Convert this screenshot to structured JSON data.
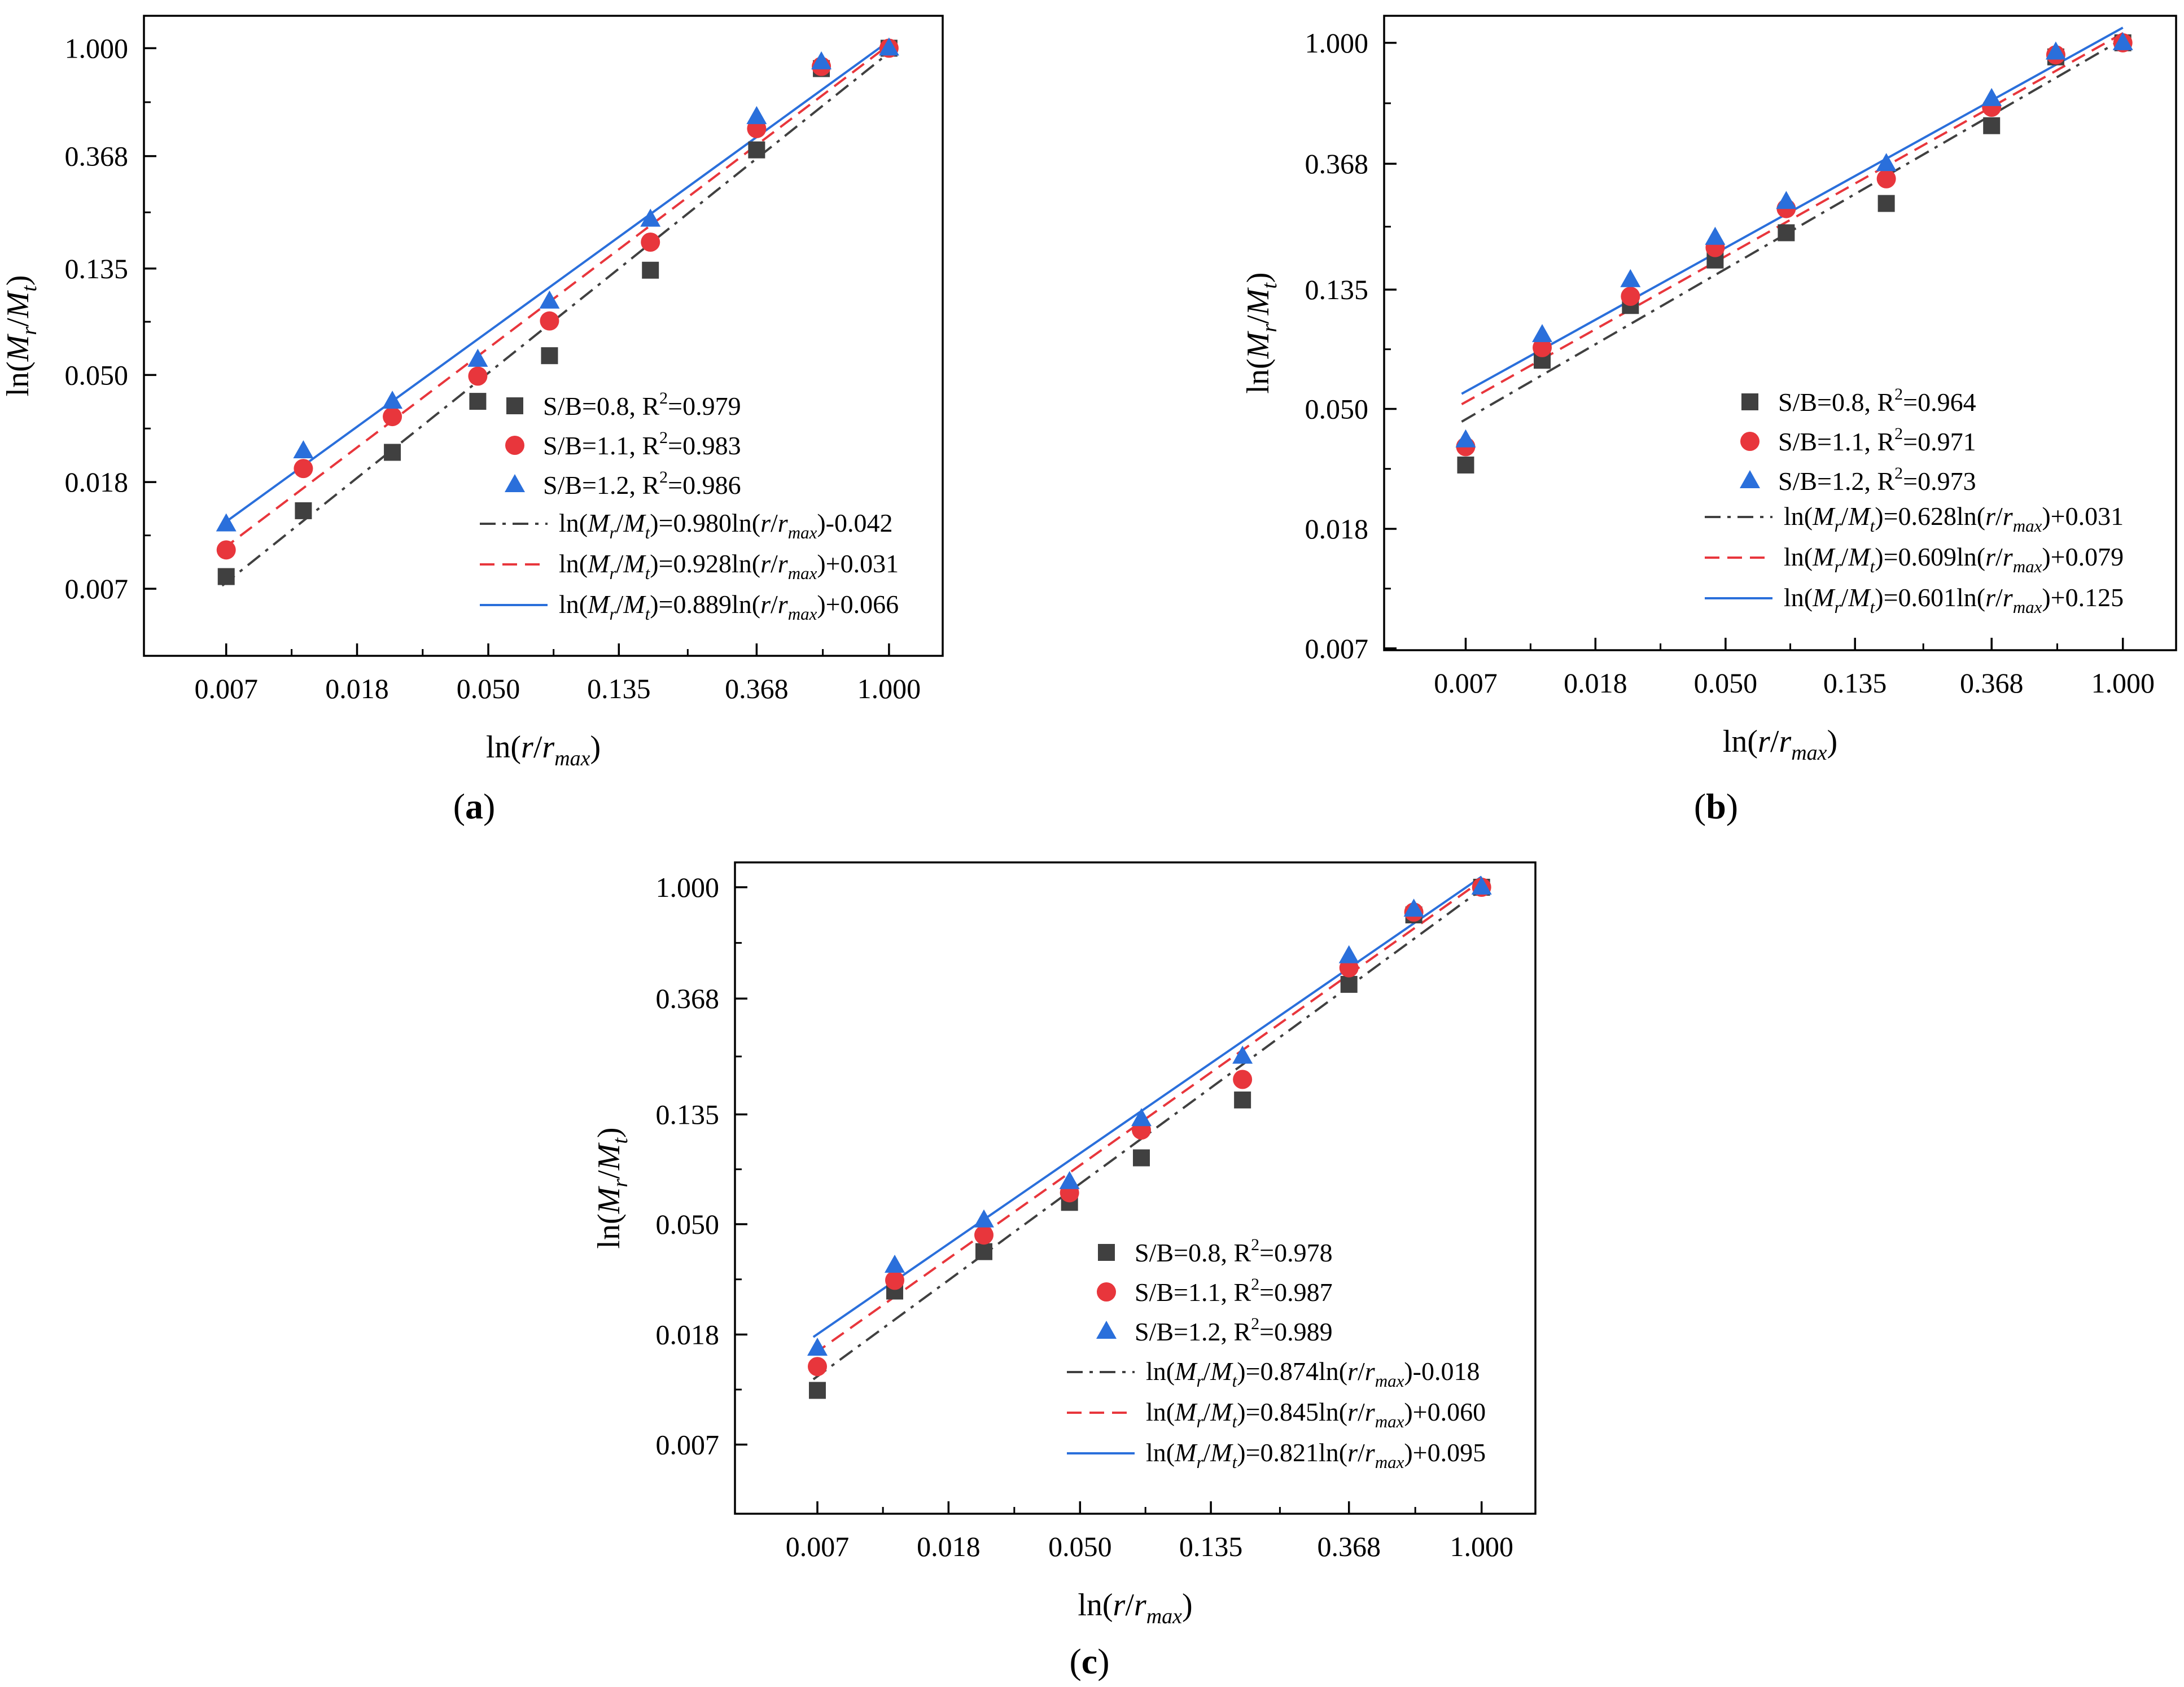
{
  "x_ticks": [
    "0.007",
    "0.018",
    "0.050",
    "0.135",
    "0.368",
    "1.000"
  ],
  "y_ticks": [
    "0.007",
    "0.018",
    "0.050",
    "0.135",
    "0.368",
    "1.000"
  ],
  "colors": {
    "s08": "#404040",
    "s11": "#e8363c",
    "s12": "#2a6fdb"
  },
  "chart_data": [
    {
      "type": "scatter",
      "panel_label": "(a)",
      "xlabel": "ln(r/r_max)",
      "ylabel": "ln(Mr/Mt)",
      "xscale": "log",
      "yscale": "log",
      "xlim": [
        0.0036,
        1.5
      ],
      "ylim": [
        0.0036,
        1.35
      ],
      "x": [
        0.0067,
        0.012,
        0.0235,
        0.0448,
        0.077,
        0.165,
        0.368,
        0.6,
        1.0
      ],
      "series": [
        {
          "name": "S/B=0.8",
          "r2": "0.979",
          "color": "#404040",
          "marker": "square",
          "values": [
            0.0075,
            0.0138,
            0.0237,
            0.038,
            0.058,
            0.128,
            0.39,
            0.828,
            1.0
          ]
        },
        {
          "name": "S/B=1.1",
          "r2": "0.983",
          "color": "#e8363c",
          "marker": "circle",
          "values": [
            0.0096,
            0.0204,
            0.033,
            0.048,
            0.08,
            0.166,
            0.475,
            0.845,
            1.0
          ]
        },
        {
          "name": "S/B=1.2",
          "r2": "0.986",
          "color": "#2a6fdb",
          "marker": "triangle",
          "values": [
            0.0122,
            0.024,
            0.038,
            0.056,
            0.096,
            0.205,
            0.53,
            0.88,
            1.0
          ]
        }
      ],
      "fits": [
        {
          "label": "ln(Mr/Mt)=0.980ln(r/rmax)-0.042",
          "prefix": "ln(M",
          "coef": "0.980",
          "intercept": "-0.042",
          "slope": 0.98,
          "c": -0.042,
          "color": "#404040",
          "style": "dashdot"
        },
        {
          "label": "ln(Mr/Mt)=0.928ln(r/rmax)+0.031",
          "prefix": "ln(M",
          "coef": "0.928",
          "intercept": "+0.031",
          "slope": 0.928,
          "c": 0.031,
          "color": "#e8363c",
          "style": "dash"
        },
        {
          "label": "ln(Mr/Mt)=0.889ln(r/rmax)+0.066",
          "prefix": "ln(M",
          "coef": "0.889",
          "intercept": "+0.066",
          "slope": 0.889,
          "c": 0.066,
          "color": "#2a6fdb",
          "style": "solid"
        }
      ]
    },
    {
      "type": "scatter",
      "panel_label": "(b)",
      "xlabel": "ln(r/r_max)",
      "ylabel": "ln(Mr/Mt)",
      "xscale": "log",
      "yscale": "log",
      "xlim": [
        0.0036,
        1.5
      ],
      "ylim": [
        0.0066,
        1.25
      ],
      "x": [
        0.0067,
        0.012,
        0.0235,
        0.0448,
        0.077,
        0.165,
        0.368,
        0.6,
        1.0
      ],
      "series": [
        {
          "name": "S/B=0.8",
          "r2": "0.964",
          "color": "#404040",
          "marker": "square",
          "values": [
            0.0305,
            0.0725,
            0.114,
            0.166,
            0.208,
            0.265,
            0.504,
            0.89,
            1.0
          ]
        },
        {
          "name": "S/B=1.1",
          "r2": "0.971",
          "color": "#e8363c",
          "marker": "circle",
          "values": [
            0.0355,
            0.0805,
            0.123,
            0.184,
            0.254,
            0.325,
            0.587,
            0.905,
            1.0
          ]
        },
        {
          "name": "S/B=1.2",
          "r2": "0.973",
          "color": "#2a6fdb",
          "marker": "triangle",
          "values": [
            0.0375,
            0.0895,
            0.141,
            0.2,
            0.269,
            0.368,
            0.63,
            0.925,
            1.0
          ]
        }
      ],
      "fits": [
        {
          "label": "ln(Mr/Mt)=0.628ln(r/rmax)+0.031",
          "prefix": "ln(M",
          "coef": "0.628",
          "intercept": "+0.031",
          "slope": 0.628,
          "c": 0.031,
          "color": "#404040",
          "style": "dashdot"
        },
        {
          "label": "ln(Mr/Mt)=0.609ln(r/rmax)+0.079",
          "prefix": "ln(M",
          "coef": "0.609",
          "intercept": "+0.079",
          "slope": 0.609,
          "c": 0.079,
          "color": "#e8363c",
          "style": "dash"
        },
        {
          "label": "ln(Mr/Mt)=0.601ln(r/rmax)+0.125",
          "prefix": "ln(M",
          "coef": "0.601",
          "intercept": "+0.125",
          "slope": 0.601,
          "c": 0.125,
          "color": "#2a6fdb",
          "style": "solid"
        }
      ]
    },
    {
      "type": "scatter",
      "panel_label": "(c)",
      "xlabel": "ln(r/r_max)",
      "ylabel": "ln(Mr/Mt)",
      "xscale": "log",
      "yscale": "log",
      "xlim": [
        0.0036,
        1.5
      ],
      "ylim": [
        0.0036,
        1.25
      ],
      "x": [
        0.0067,
        0.012,
        0.0235,
        0.0448,
        0.077,
        0.165,
        0.368,
        0.6,
        1.0
      ],
      "series": [
        {
          "name": "S/B=0.8",
          "r2": "0.978",
          "color": "#404040",
          "marker": "square",
          "values": [
            0.0109,
            0.0266,
            0.0379,
            0.059,
            0.088,
            0.148,
            0.418,
            0.78,
            1.0
          ]
        },
        {
          "name": "S/B=1.1",
          "r2": "0.987",
          "color": "#e8363c",
          "marker": "circle",
          "values": [
            0.0135,
            0.0293,
            0.044,
            0.0643,
            0.113,
            0.178,
            0.485,
            0.8,
            1.0
          ]
        },
        {
          "name": "S/B=1.2",
          "r2": "0.989",
          "color": "#2a6fdb",
          "marker": "triangle",
          "values": [
            0.0159,
            0.0335,
            0.0503,
            0.071,
            0.125,
            0.219,
            0.54,
            0.82,
            1.0
          ]
        }
      ],
      "fits": [
        {
          "label": "ln(Mr/Mt)=0.874ln(r/rmax)-0.018",
          "prefix": "ln(M",
          "coef": "0.874",
          "intercept": "-0.018",
          "slope": 0.874,
          "c": -0.018,
          "color": "#404040",
          "style": "dashdot"
        },
        {
          "label": "ln(Mr/Mt)=0.845ln(r/rmax)+0.060",
          "prefix": "ln(M",
          "coef": "0.845",
          "intercept": "+0.060",
          "slope": 0.845,
          "c": 0.06,
          "color": "#e8363c",
          "style": "dash"
        },
        {
          "label": "ln(Mr/Mt)=0.821ln(r/rmax)+0.095",
          "prefix": "ln(M",
          "coef": "0.821",
          "intercept": "+0.095",
          "slope": 0.821,
          "c": 0.095,
          "color": "#2a6fdb",
          "style": "solid"
        }
      ]
    }
  ]
}
